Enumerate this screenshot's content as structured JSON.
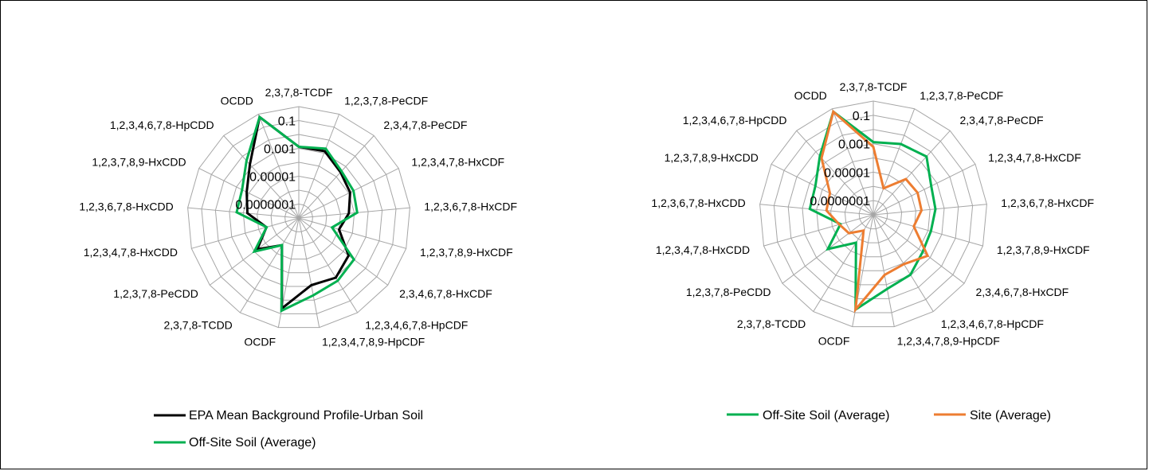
{
  "chart_data": [
    {
      "type": "radar",
      "scale": "log",
      "range": [
        1e-08,
        1
      ],
      "tick_labels": [
        "0.1",
        "0.001",
        "0.00001",
        "0.0000001"
      ],
      "categories": [
        "2,3,7,8-TCDF",
        "1,2,3,7,8-PeCDF",
        "2,3,4,7,8-PeCDF",
        "1,2,3,4,7,8-HxCDF",
        "1,2,3,6,7,8-HxCDF",
        "1,2,3,7,8,9-HxCDF",
        "2,3,4,6,7,8-HxCDF",
        "1,2,3,4,6,7,8-HpCDF",
        "1,2,3,4,7,8,9-HpCDF",
        "OCDF",
        "2,3,7,8-TCDD",
        "1,2,3,7,8-PeCDD",
        "1,2,3,4,7,8-HxCDD",
        "1,2,3,6,7,8-HxCDD",
        "1,2,3,7,8,9-HxCDD",
        "1,2,3,4,6,7,8-HpCDD",
        "OCDD"
      ],
      "series": [
        {
          "name": "EPA Mean Background Profile-Urban Soil",
          "color": "#000000",
          "values": [
            0.0013,
            0.0014,
            0.00028,
            0.00013,
            4e-05,
            1e-05,
            0.0003,
            0.0011,
            0.0008,
            0.04,
            2e-06,
            5.5e-05,
            2.6e-06,
            5e-05,
            0.00015,
            0.0016,
            0.6
          ]
        },
        {
          "name": "Off-Site Soil (Average)",
          "color": "#00b050",
          "values": [
            0.0013,
            0.0022,
            0.00035,
            0.00024,
            0.00016,
            3e-06,
            0.0009,
            0.002,
            0.0045,
            0.06,
            2e-06,
            0.0001,
            2.5e-06,
            0.0003,
            0.00035,
            0.0037,
            0.6
          ]
        }
      ]
    },
    {
      "type": "radar",
      "scale": "log",
      "range": [
        1e-08,
        1
      ],
      "tick_labels": [
        "0.1",
        "0.001",
        "0.00001",
        "0.0000001"
      ],
      "categories": [
        "2,3,7,8-TCDF",
        "1,2,3,7,8-PeCDF",
        "2,3,4,7,8-PeCDF",
        "1,2,3,4,7,8-HxCDF",
        "1,2,3,6,7,8-HxCDF",
        "1,2,3,7,8,9-HxCDF",
        "2,3,4,6,7,8-HxCDF",
        "1,2,3,4,6,7,8-HpCDF",
        "1,2,3,4,7,8,9-HpCDF",
        "OCDF",
        "2,3,7,8-TCDD",
        "1,2,3,7,8-PeCDD",
        "1,2,3,4,7,8-HxCDD",
        "1,2,3,6,7,8-HxCDD",
        "1,2,3,7,8,9-HxCDD",
        "1,2,3,4,6,7,8-HpCDD",
        "OCDD"
      ],
      "series": [
        {
          "name": "Off-Site Soil (Average)",
          "color": "#00b050",
          "values": [
            0.0013,
            0.0022,
            0.0035,
            0.00035,
            0.00024,
            0.00016,
            0.00022,
            0.0009,
            0.002,
            0.06,
            2e-06,
            0.0001,
            2.5e-06,
            0.0003,
            0.00035,
            0.0037,
            0.6
          ]
        },
        {
          "name": "Site (Average)",
          "color": "#ed7d31",
          "values": [
            0.0006,
            1e-06,
            2.5e-05,
            3e-05,
            2.5e-05,
            9e-06,
            0.0006,
            0.00012,
            0.0002,
            0.06,
            2e-07,
            1.4e-06,
            3e-06,
            2e-05,
            2.5e-05,
            0.0025,
            0.6
          ]
        }
      ]
    }
  ]
}
